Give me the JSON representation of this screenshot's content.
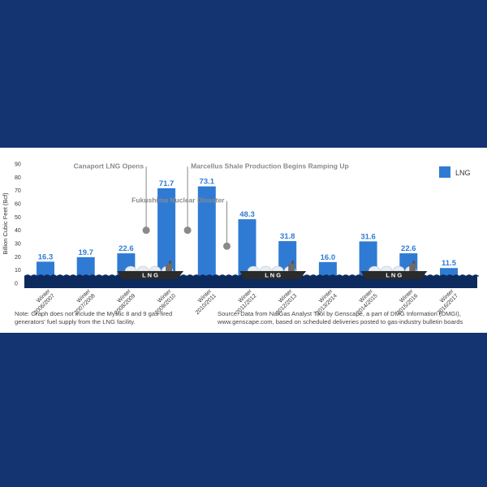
{
  "colors": {
    "page_background": "#133470",
    "bar": "#2f7bd4",
    "value_label": "#2f7bd4",
    "water": "#0d2a5e",
    "ship": "#2b2b2b",
    "annotation": "#8a8a8a"
  },
  "chart_data": {
    "type": "bar",
    "ylabel": "Billion Cubic Feet (Bcf)",
    "ylim": [
      0,
      90
    ],
    "yticks": [
      0,
      10,
      20,
      30,
      40,
      50,
      60,
      70,
      80,
      90
    ],
    "categories": [
      [
        "Winter",
        "2006/2007"
      ],
      [
        "Winter",
        "2007/2008"
      ],
      [
        "Winter",
        "2008/2009"
      ],
      [
        "Winter",
        "2009/2010"
      ],
      [
        "Winter",
        "2010/2011"
      ],
      [
        "Winter",
        "2011/2012"
      ],
      [
        "Winter",
        "2012/2013"
      ],
      [
        "Winter",
        "2013/2014"
      ],
      [
        "Winter",
        "2014/2015"
      ],
      [
        "Winter",
        "2015/2016"
      ],
      [
        "Winter",
        "2016/2017"
      ]
    ],
    "series": [
      {
        "name": "LNG",
        "values": [
          16.3,
          19.7,
          22.6,
          71.7,
          73.1,
          48.3,
          31.8,
          16.0,
          31.6,
          22.6,
          11.5
        ],
        "labels": [
          "16.3",
          "19.7",
          "22.6",
          "71.7",
          "73.1",
          "48.3",
          "31.8",
          "16.0",
          "31.6",
          "22.6",
          "11.5"
        ]
      }
    ],
    "legend": {
      "label": "LNG",
      "position": "top-right"
    },
    "annotations": [
      {
        "text": "Canaport LNG Opens",
        "category_index": 3,
        "side": "before",
        "y": 40
      },
      {
        "text": "Marcellus Shale Production Begins Ramping Up",
        "category_index": 3,
        "side": "after",
        "y": 40
      },
      {
        "text": "Fukushima Nuclear Disaster",
        "category_index": 5,
        "side": "before",
        "y": 28
      }
    ],
    "ships": [
      {
        "label": "L N G",
        "near_category": 3
      },
      {
        "label": "L N G",
        "near_category": 6
      },
      {
        "label": "L N G",
        "near_category": 9
      }
    ],
    "grid": false
  },
  "notes": {
    "left": "Note: Graph does not include the Mystic 8 and 9 gas-fired generators' fuel supply from the LNG facility.",
    "right": "Source: Data from NatGas Analyst Tool by Genscape, a part of DMG Information (DMGI), www.genscape.com, based on scheduled deliveries posted to gas-industry bulletin boards"
  }
}
